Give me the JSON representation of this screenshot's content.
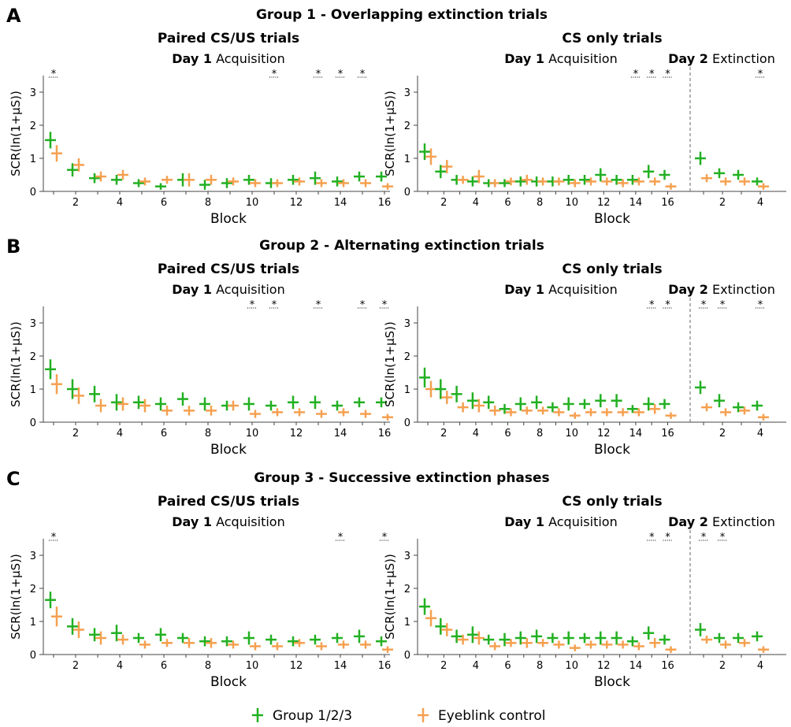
{
  "panels": [
    {
      "letter": "A",
      "title": "Group 1 - Overlapping extinction trials"
    },
    {
      "letter": "B",
      "title": "Group 2 - Alternating extinction trials"
    },
    {
      "letter": "C",
      "title": "Group 3 - Successive extinction phases"
    }
  ],
  "legend": [
    {
      "name": "Group 1/2/3",
      "color": "#22b022"
    },
    {
      "name": "Eyeblink control",
      "color": "#f5a050"
    }
  ],
  "chart_data": [
    {
      "type": "errorbar",
      "title": "Paired CS/US trials",
      "ylabel": "SCR(ln(1+µS))",
      "xlabel": "Block",
      "ylim": [
        0,
        3.5
      ],
      "yticks": [
        0,
        1,
        2,
        3
      ],
      "days": [
        {
          "day": "Day 1",
          "phase": "Acquisition",
          "categories": [
            null,
            "2",
            null,
            "4",
            null,
            "6",
            null,
            "8",
            null,
            "10",
            null,
            "12",
            null,
            "14",
            null,
            "16"
          ],
          "stars": [
            "*",
            null,
            null,
            null,
            null,
            null,
            null,
            null,
            null,
            null,
            "*",
            null,
            "*",
            "*",
            "*",
            null
          ],
          "series": [
            {
              "values": [
                1.55,
                0.65,
                0.4,
                0.35,
                0.25,
                0.15,
                0.35,
                0.2,
                0.25,
                0.35,
                0.25,
                0.35,
                0.4,
                0.3,
                0.45,
                0.45
              ],
              "errors": [
                0.25,
                0.2,
                0.15,
                0.15,
                0.12,
                0.1,
                0.2,
                0.15,
                0.15,
                0.15,
                0.15,
                0.15,
                0.2,
                0.15,
                0.15,
                0.15
              ]
            },
            {
              "values": [
                1.15,
                0.8,
                0.45,
                0.5,
                0.3,
                0.35,
                0.35,
                0.35,
                0.3,
                0.25,
                0.25,
                0.3,
                0.25,
                0.25,
                0.25,
                0.15
              ],
              "errors": [
                0.25,
                0.2,
                0.15,
                0.15,
                0.12,
                0.12,
                0.2,
                0.15,
                0.12,
                0.12,
                0.12,
                0.12,
                0.12,
                0.12,
                0.12,
                0.1
              ]
            }
          ]
        }
      ]
    },
    {
      "type": "errorbar",
      "title": "CS only trials",
      "ylabel": "SCR(ln(1+µS))",
      "xlabel": "Block",
      "ylim": [
        0,
        3.5
      ],
      "yticks": [
        0,
        1,
        2,
        3
      ],
      "days": [
        {
          "day": "Day 1",
          "phase": "Acquisition",
          "categories": [
            null,
            "2",
            null,
            "4",
            null,
            "6",
            null,
            "8",
            null,
            "10",
            null,
            "12",
            null,
            "14",
            null,
            "16"
          ],
          "stars": [
            null,
            null,
            null,
            null,
            null,
            null,
            null,
            null,
            null,
            null,
            null,
            null,
            null,
            "*",
            "*",
            "*"
          ],
          "series": [
            {
              "values": [
                1.2,
                0.6,
                0.35,
                0.3,
                0.25,
                0.25,
                0.3,
                0.3,
                0.3,
                0.35,
                0.35,
                0.5,
                0.35,
                0.35,
                0.6,
                0.5
              ],
              "errors": [
                0.25,
                0.2,
                0.15,
                0.15,
                0.12,
                0.12,
                0.15,
                0.15,
                0.15,
                0.15,
                0.15,
                0.2,
                0.15,
                0.15,
                0.2,
                0.15
              ]
            },
            {
              "values": [
                1.05,
                0.75,
                0.35,
                0.45,
                0.25,
                0.3,
                0.35,
                0.3,
                0.3,
                0.25,
                0.3,
                0.3,
                0.25,
                0.3,
                0.3,
                0.15
              ],
              "errors": [
                0.25,
                0.2,
                0.12,
                0.2,
                0.12,
                0.12,
                0.15,
                0.12,
                0.12,
                0.12,
                0.12,
                0.12,
                0.12,
                0.12,
                0.12,
                0.1
              ]
            }
          ]
        },
        {
          "day": "Day 2",
          "phase": "Extinction",
          "categories": [
            null,
            "2",
            null,
            "4"
          ],
          "stars": [
            null,
            null,
            null,
            "*"
          ],
          "series": [
            {
              "values": [
                1.0,
                0.55,
                0.5,
                0.3
              ],
              "errors": [
                0.2,
                0.15,
                0.15,
                0.12
              ]
            },
            {
              "values": [
                0.4,
                0.3,
                0.3,
                0.15
              ],
              "errors": [
                0.12,
                0.12,
                0.12,
                0.1
              ]
            }
          ]
        }
      ]
    },
    {
      "type": "errorbar",
      "title": "Paired CS/US trials",
      "ylabel": "SCR(ln(1+µS))",
      "xlabel": "Block",
      "ylim": [
        0,
        3.5
      ],
      "yticks": [
        0,
        1,
        2,
        3
      ],
      "days": [
        {
          "day": "Day 1",
          "phase": "Acquisition",
          "categories": [
            null,
            "2",
            null,
            "4",
            null,
            "6",
            null,
            "8",
            null,
            "10",
            null,
            "12",
            null,
            "14",
            null,
            "16"
          ],
          "stars": [
            null,
            null,
            null,
            null,
            null,
            null,
            null,
            null,
            null,
            "*",
            "*",
            null,
            "*",
            null,
            "*",
            "*"
          ],
          "series": [
            {
              "values": [
                1.6,
                1.0,
                0.85,
                0.6,
                0.6,
                0.55,
                0.7,
                0.55,
                0.5,
                0.55,
                0.5,
                0.6,
                0.6,
                0.5,
                0.6,
                0.6
              ],
              "errors": [
                0.3,
                0.3,
                0.25,
                0.25,
                0.2,
                0.2,
                0.2,
                0.2,
                0.15,
                0.2,
                0.15,
                0.2,
                0.2,
                0.15,
                0.15,
                0.15
              ]
            },
            {
              "values": [
                1.15,
                0.8,
                0.5,
                0.55,
                0.5,
                0.35,
                0.35,
                0.35,
                0.5,
                0.25,
                0.3,
                0.3,
                0.25,
                0.3,
                0.25,
                0.15
              ],
              "errors": [
                0.3,
                0.25,
                0.2,
                0.2,
                0.2,
                0.15,
                0.15,
                0.15,
                0.15,
                0.12,
                0.12,
                0.12,
                0.12,
                0.12,
                0.12,
                0.1
              ]
            }
          ]
        }
      ]
    },
    {
      "type": "errorbar",
      "title": "CS only trials",
      "ylabel": "SCR(ln(1+µS))",
      "xlabel": "Block",
      "ylim": [
        0,
        3.5
      ],
      "yticks": [
        0,
        1,
        2,
        3
      ],
      "days": [
        {
          "day": "Day 1",
          "phase": "Acquisition",
          "categories": [
            null,
            "2",
            null,
            "4",
            null,
            "6",
            null,
            "8",
            null,
            "10",
            null,
            "12",
            null,
            "14",
            null,
            "16"
          ],
          "stars": [
            null,
            null,
            null,
            null,
            null,
            null,
            null,
            null,
            null,
            null,
            null,
            null,
            null,
            null,
            "*",
            "*"
          ],
          "series": [
            {
              "values": [
                1.35,
                1.0,
                0.85,
                0.65,
                0.6,
                0.4,
                0.55,
                0.6,
                0.45,
                0.55,
                0.55,
                0.65,
                0.65,
                0.4,
                0.55,
                0.55
              ],
              "errors": [
                0.3,
                0.3,
                0.25,
                0.25,
                0.2,
                0.15,
                0.2,
                0.2,
                0.15,
                0.2,
                0.15,
                0.2,
                0.2,
                0.12,
                0.2,
                0.15
              ]
            },
            {
              "values": [
                1.0,
                0.75,
                0.45,
                0.5,
                0.35,
                0.3,
                0.35,
                0.35,
                0.3,
                0.2,
                0.3,
                0.3,
                0.3,
                0.3,
                0.4,
                0.2
              ],
              "errors": [
                0.25,
                0.2,
                0.15,
                0.2,
                0.15,
                0.12,
                0.12,
                0.12,
                0.12,
                0.1,
                0.12,
                0.12,
                0.12,
                0.12,
                0.15,
                0.1
              ]
            }
          ]
        },
        {
          "day": "Day 2",
          "phase": "Extinction",
          "categories": [
            null,
            "2",
            null,
            "4"
          ],
          "stars": [
            "*",
            "*",
            null,
            "*"
          ],
          "series": [
            {
              "values": [
                1.05,
                0.65,
                0.45,
                0.5
              ],
              "errors": [
                0.2,
                0.2,
                0.15,
                0.15
              ]
            },
            {
              "values": [
                0.45,
                0.3,
                0.35,
                0.15
              ],
              "errors": [
                0.12,
                0.12,
                0.12,
                0.1
              ]
            }
          ]
        }
      ]
    },
    {
      "type": "errorbar",
      "title": "Paired CS/US trials",
      "ylabel": "SCR(ln(1+µS))",
      "xlabel": "Block",
      "ylim": [
        0,
        3.5
      ],
      "yticks": [
        0,
        1,
        2,
        3
      ],
      "days": [
        {
          "day": "Day 1",
          "phase": "Acquisition",
          "categories": [
            null,
            "2",
            null,
            "4",
            null,
            "6",
            null,
            "8",
            null,
            "10",
            null,
            "12",
            null,
            "14",
            null,
            "16"
          ],
          "stars": [
            "*",
            null,
            null,
            null,
            null,
            null,
            null,
            null,
            null,
            null,
            null,
            null,
            null,
            "*",
            null,
            "*"
          ],
          "series": [
            {
              "values": [
                1.65,
                0.85,
                0.6,
                0.65,
                0.5,
                0.6,
                0.5,
                0.4,
                0.4,
                0.5,
                0.45,
                0.4,
                0.45,
                0.5,
                0.55,
                0.4
              ],
              "errors": [
                0.25,
                0.25,
                0.2,
                0.25,
                0.15,
                0.2,
                0.15,
                0.15,
                0.15,
                0.2,
                0.15,
                0.15,
                0.15,
                0.15,
                0.2,
                0.15
              ]
            },
            {
              "values": [
                1.15,
                0.75,
                0.5,
                0.45,
                0.3,
                0.35,
                0.35,
                0.35,
                0.3,
                0.25,
                0.25,
                0.35,
                0.25,
                0.3,
                0.3,
                0.15
              ],
              "errors": [
                0.3,
                0.25,
                0.2,
                0.15,
                0.12,
                0.12,
                0.15,
                0.15,
                0.12,
                0.12,
                0.12,
                0.12,
                0.12,
                0.12,
                0.12,
                0.1
              ]
            }
          ]
        }
      ]
    },
    {
      "type": "errorbar",
      "title": "CS only trials",
      "ylabel": "SCR(ln(1+µS))",
      "xlabel": "Block",
      "ylim": [
        0,
        3.5
      ],
      "yticks": [
        0,
        1,
        2,
        3
      ],
      "days": [
        {
          "day": "Day 1",
          "phase": "Acquisition",
          "categories": [
            null,
            "2",
            null,
            "4",
            null,
            "6",
            null,
            "8",
            null,
            "10",
            null,
            "12",
            null,
            "14",
            null,
            "16"
          ],
          "stars": [
            null,
            null,
            null,
            null,
            null,
            null,
            null,
            null,
            null,
            null,
            null,
            null,
            null,
            null,
            "*",
            "*"
          ],
          "series": [
            {
              "values": [
                1.45,
                0.85,
                0.55,
                0.6,
                0.45,
                0.45,
                0.5,
                0.55,
                0.5,
                0.5,
                0.5,
                0.5,
                0.5,
                0.4,
                0.65,
                0.45
              ],
              "errors": [
                0.25,
                0.25,
                0.2,
                0.25,
                0.15,
                0.2,
                0.2,
                0.2,
                0.15,
                0.2,
                0.15,
                0.2,
                0.2,
                0.15,
                0.2,
                0.15
              ]
            },
            {
              "values": [
                1.1,
                0.75,
                0.45,
                0.5,
                0.25,
                0.35,
                0.35,
                0.35,
                0.3,
                0.2,
                0.3,
                0.3,
                0.3,
                0.25,
                0.35,
                0.15
              ],
              "errors": [
                0.25,
                0.2,
                0.15,
                0.2,
                0.12,
                0.12,
                0.15,
                0.12,
                0.12,
                0.1,
                0.12,
                0.12,
                0.12,
                0.12,
                0.15,
                0.1
              ]
            }
          ]
        },
        {
          "day": "Day 2",
          "phase": "Extinction",
          "categories": [
            null,
            "2",
            null,
            "4"
          ],
          "stars": [
            "*",
            "*",
            null,
            null
          ],
          "series": [
            {
              "values": [
                0.75,
                0.5,
                0.5,
                0.55
              ],
              "errors": [
                0.2,
                0.15,
                0.15,
                0.15
              ]
            },
            {
              "values": [
                0.45,
                0.3,
                0.35,
                0.15
              ],
              "errors": [
                0.12,
                0.12,
                0.12,
                0.1
              ]
            }
          ]
        }
      ]
    }
  ]
}
